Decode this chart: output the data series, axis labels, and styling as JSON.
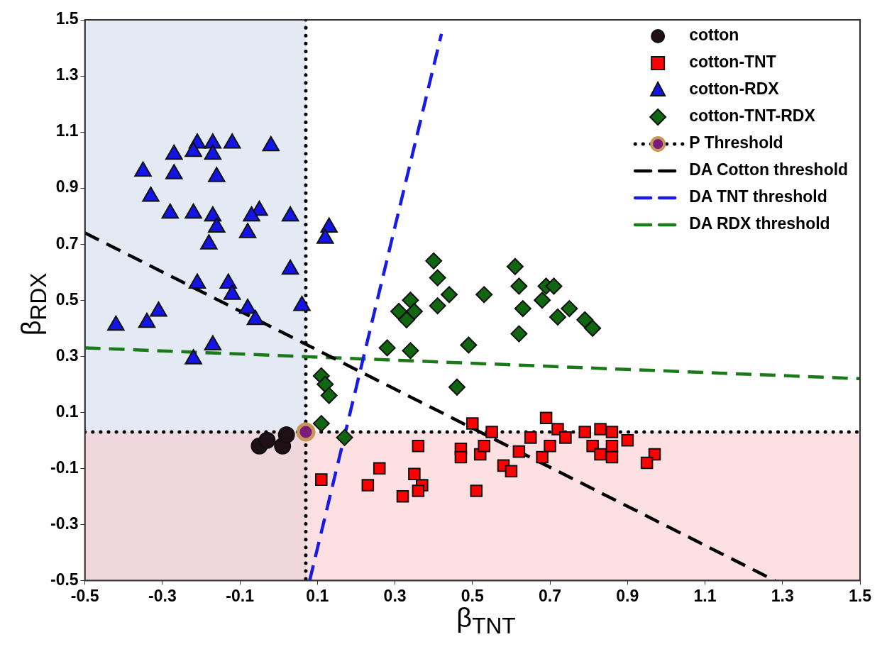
{
  "chart_data": {
    "type": "scatter",
    "xlabel": "β$_{TNT}$",
    "ylabel": "β$_{RDX}$",
    "xlim": [
      -0.5,
      1.5
    ],
    "ylim": [
      -0.5,
      1.5
    ],
    "xticks": [
      -0.5,
      -0.3,
      -0.1,
      0.1,
      0.3,
      0.5,
      0.7,
      0.9,
      1.1,
      1.3,
      1.5
    ],
    "yticks": [
      -0.5,
      -0.3,
      -0.1,
      0.1,
      0.3,
      0.5,
      0.7,
      0.9,
      1.1,
      1.3,
      1.5
    ],
    "grid": false,
    "legend": "top right",
    "bands": [
      {
        "axis": "x",
        "from": -0.5,
        "to": 0.07,
        "color": "#c8d6ea"
      },
      {
        "axis": "y",
        "from": -0.5,
        "to": 0.03,
        "color": "#fbc3c6"
      }
    ],
    "ref_lines": [
      {
        "axis": "x",
        "value": 0.07,
        "color": "#000000",
        "line_style": "dotted"
      },
      {
        "axis": "y",
        "value": 0.03,
        "color": "#000000",
        "line_style": "dotted"
      }
    ],
    "series": [
      {
        "name": "cotton",
        "type": "scatter",
        "marker": "circle",
        "color": "#1e1016",
        "x": [
          -0.05,
          -0.03,
          0.01,
          0.02
        ],
        "values": [
          -0.02,
          0.0,
          -0.02,
          0.02
        ]
      },
      {
        "name": "cotton-TNT",
        "type": "scatter",
        "marker": "square",
        "color": "#ff0000",
        "x": [
          0.11,
          0.26,
          0.23,
          0.36,
          0.35,
          0.37,
          0.32,
          0.36,
          0.47,
          0.47,
          0.51,
          0.5,
          0.55,
          0.52,
          0.53,
          0.58,
          0.62,
          0.6,
          0.65,
          0.69,
          0.72,
          0.7,
          0.68,
          0.74,
          0.79,
          0.83,
          0.86,
          0.81,
          0.86,
          0.86,
          0.9,
          0.97,
          0.95,
          0.83
        ],
        "values": [
          -0.14,
          -0.1,
          -0.16,
          -0.02,
          -0.12,
          -0.16,
          -0.2,
          -0.18,
          -0.03,
          -0.06,
          -0.18,
          0.06,
          0.03,
          -0.05,
          -0.02,
          -0.09,
          -0.04,
          -0.11,
          0.01,
          0.08,
          0.04,
          -0.02,
          -0.06,
          0.01,
          0.03,
          0.04,
          0.03,
          -0.02,
          -0.02,
          -0.06,
          0.0,
          -0.05,
          -0.08,
          -0.05
        ]
      },
      {
        "name": "cotton-RDX",
        "type": "scatter",
        "marker": "triangle",
        "color": "#1414e6",
        "x": [
          -0.21,
          -0.17,
          -0.12,
          -0.02,
          -0.27,
          -0.22,
          -0.17,
          -0.35,
          -0.27,
          -0.16,
          -0.33,
          -0.28,
          -0.22,
          -0.17,
          -0.16,
          -0.18,
          -0.05,
          -0.07,
          -0.08,
          0.03,
          0.13,
          0.12,
          0.03,
          0.06,
          -0.21,
          -0.13,
          -0.12,
          -0.08,
          -0.06,
          -0.31,
          -0.34,
          -0.42,
          -0.17,
          -0.22
        ],
        "values": [
          1.06,
          1.06,
          1.06,
          1.05,
          1.02,
          1.03,
          1.02,
          0.96,
          0.95,
          0.94,
          0.87,
          0.81,
          0.81,
          0.8,
          0.76,
          0.7,
          0.82,
          0.8,
          0.74,
          0.8,
          0.76,
          0.72,
          0.61,
          0.48,
          0.56,
          0.56,
          0.52,
          0.47,
          0.43,
          0.46,
          0.42,
          0.41,
          0.34,
          0.29
        ]
      },
      {
        "name": "cotton-TNT-RDX",
        "type": "scatter",
        "marker": "diamond",
        "color": "#116611",
        "x": [
          0.4,
          0.41,
          0.44,
          0.41,
          0.34,
          0.31,
          0.35,
          0.33,
          0.53,
          0.61,
          0.62,
          0.63,
          0.62,
          0.69,
          0.71,
          0.68,
          0.72,
          0.75,
          0.79,
          0.81,
          0.49,
          0.28,
          0.34,
          0.46,
          0.11,
          0.12,
          0.13,
          0.11,
          0.17
        ],
        "values": [
          0.64,
          0.58,
          0.52,
          0.48,
          0.5,
          0.46,
          0.46,
          0.43,
          0.52,
          0.62,
          0.55,
          0.47,
          0.38,
          0.55,
          0.55,
          0.5,
          0.44,
          0.47,
          0.43,
          0.4,
          0.34,
          0.33,
          0.32,
          0.19,
          0.23,
          0.2,
          0.16,
          0.06,
          0.01
        ]
      },
      {
        "name": "P Threshold",
        "type": "scatter",
        "marker": "circle",
        "line_style": "dotted",
        "color": "#7a1a7a",
        "x": [
          0.07
        ],
        "values": [
          0.03
        ]
      },
      {
        "name": "DA Cotton threshold",
        "type": "line",
        "marker": "none",
        "line_style": "dashed",
        "color": "#000000",
        "x": [
          -0.5,
          1.28
        ],
        "values": [
          0.74,
          -0.5
        ]
      },
      {
        "name": "DA TNT threshold",
        "type": "line",
        "marker": "none",
        "line_style": "dashed",
        "color": "#1a1ae6",
        "x": [
          0.08,
          0.42
        ],
        "values": [
          -0.5,
          1.45
        ]
      },
      {
        "name": "DA RDX threshold",
        "type": "line",
        "marker": "none",
        "line_style": "dashed",
        "color": "#1a7a1a",
        "x": [
          -0.5,
          1.5
        ],
        "values": [
          0.33,
          0.22
        ]
      }
    ]
  }
}
